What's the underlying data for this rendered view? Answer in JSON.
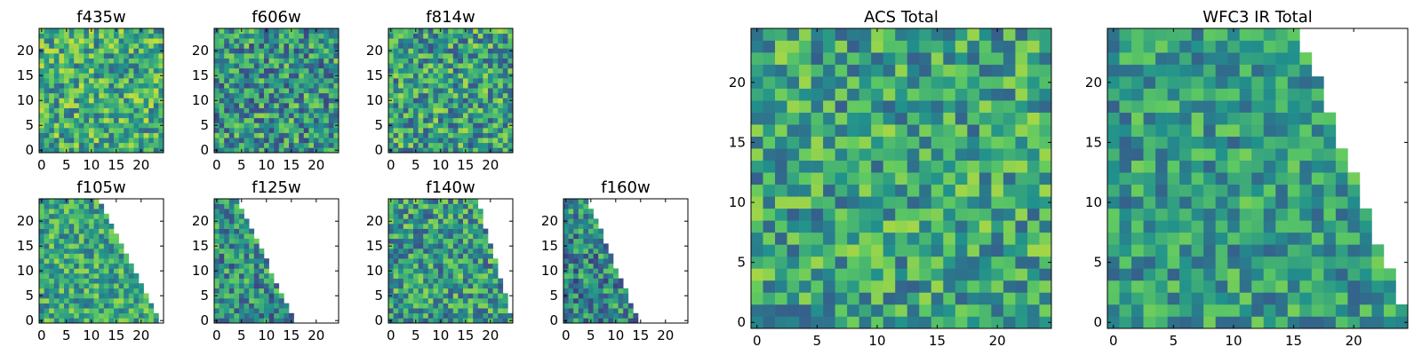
{
  "colormap": [
    "#440154",
    "#3b528b",
    "#21918c",
    "#5ec962",
    "#fde725"
  ],
  "chart_data": [
    {
      "id": "f435w",
      "type": "heatmap",
      "title": "f435w",
      "xticks": [
        0,
        5,
        10,
        15,
        20
      ],
      "yticks": [
        0,
        5,
        10,
        15,
        20
      ],
      "xlim": [
        -0.5,
        24.5
      ],
      "ylim": [
        -0.5,
        24.5
      ],
      "grid": false,
      "shape": "full",
      "mean": 0.62,
      "spread": 0.3,
      "seed": 11
    },
    {
      "id": "f606w",
      "type": "heatmap",
      "title": "f606w",
      "xticks": [
        0,
        5,
        10,
        15,
        20
      ],
      "yticks": [
        0,
        5,
        10,
        15,
        20
      ],
      "xlim": [
        -0.5,
        24.5
      ],
      "ylim": [
        -0.5,
        24.5
      ],
      "grid": false,
      "shape": "full",
      "mean": 0.52,
      "spread": 0.32,
      "seed": 23
    },
    {
      "id": "f814w",
      "type": "heatmap",
      "title": "f814w",
      "xticks": [
        0,
        5,
        10,
        15,
        20
      ],
      "yticks": [
        0,
        5,
        10,
        15,
        20
      ],
      "xlim": [
        -0.5,
        24.5
      ],
      "ylim": [
        -0.5,
        24.5
      ],
      "grid": false,
      "shape": "full",
      "mean": 0.56,
      "spread": 0.32,
      "seed": 37
    },
    {
      "id": "f105w",
      "type": "heatmap",
      "title": "f105w",
      "xticks": [
        0,
        5,
        10,
        15,
        20
      ],
      "yticks": [
        0,
        5,
        10,
        15,
        20
      ],
      "xlim": [
        -0.5,
        24.5
      ],
      "ylim": [
        -0.5,
        24.5
      ],
      "grid": false,
      "shape": "wedge",
      "valid_extent": [
        11,
        23
      ],
      "mean": 0.6,
      "spread": 0.26,
      "seed": 41
    },
    {
      "id": "f125w",
      "type": "heatmap",
      "title": "f125w",
      "xticks": [
        0,
        5,
        10,
        15,
        20
      ],
      "yticks": [
        0,
        5,
        10,
        15,
        20
      ],
      "xlim": [
        -0.5,
        24.5
      ],
      "ylim": [
        -0.5,
        24.5
      ],
      "grid": false,
      "shape": "wedge",
      "valid_extent": [
        4,
        15
      ],
      "mean": 0.5,
      "spread": 0.3,
      "seed": 53
    },
    {
      "id": "f140w",
      "type": "heatmap",
      "title": "f140w",
      "xticks": [
        0,
        5,
        10,
        15,
        20
      ],
      "yticks": [
        0,
        5,
        10,
        15,
        20
      ],
      "xlim": [
        -0.5,
        24.5
      ],
      "ylim": [
        -0.5,
        24.5
      ],
      "grid": false,
      "shape": "wedge",
      "valid_extent": [
        17,
        24
      ],
      "mean": 0.55,
      "spread": 0.3,
      "seed": 67
    },
    {
      "id": "f160w",
      "type": "heatmap",
      "title": "f160w",
      "xticks": [
        0,
        5,
        10,
        15,
        20
      ],
      "yticks": [
        0,
        5,
        10,
        15,
        20
      ],
      "xlim": [
        -0.5,
        24.5
      ],
      "ylim": [
        -0.5,
        24.5
      ],
      "grid": false,
      "shape": "wedge",
      "valid_extent": [
        4,
        14
      ],
      "mean": 0.48,
      "spread": 0.3,
      "seed": 79
    },
    {
      "id": "acs-total",
      "type": "heatmap",
      "title": "ACS Total",
      "xticks": [
        0,
        5,
        10,
        15,
        20
      ],
      "yticks": [
        0,
        5,
        10,
        15,
        20
      ],
      "xlim": [
        -0.5,
        24.5
      ],
      "ylim": [
        -0.5,
        24.5
      ],
      "grid": false,
      "shape": "full",
      "mean": 0.58,
      "spread": 0.28,
      "seed": 97
    },
    {
      "id": "wfc3-ir-total",
      "type": "heatmap",
      "title": "WFC3 IR Total",
      "xticks": [
        0,
        5,
        10,
        15,
        20
      ],
      "yticks": [
        0,
        5,
        10,
        15,
        20
      ],
      "xlim": [
        -0.5,
        24.5
      ],
      "ylim": [
        -0.5,
        24.5
      ],
      "grid": false,
      "shape": "wedge",
      "valid_extent": [
        15,
        24
      ],
      "mean": 0.55,
      "spread": 0.24,
      "seed": 113
    }
  ]
}
